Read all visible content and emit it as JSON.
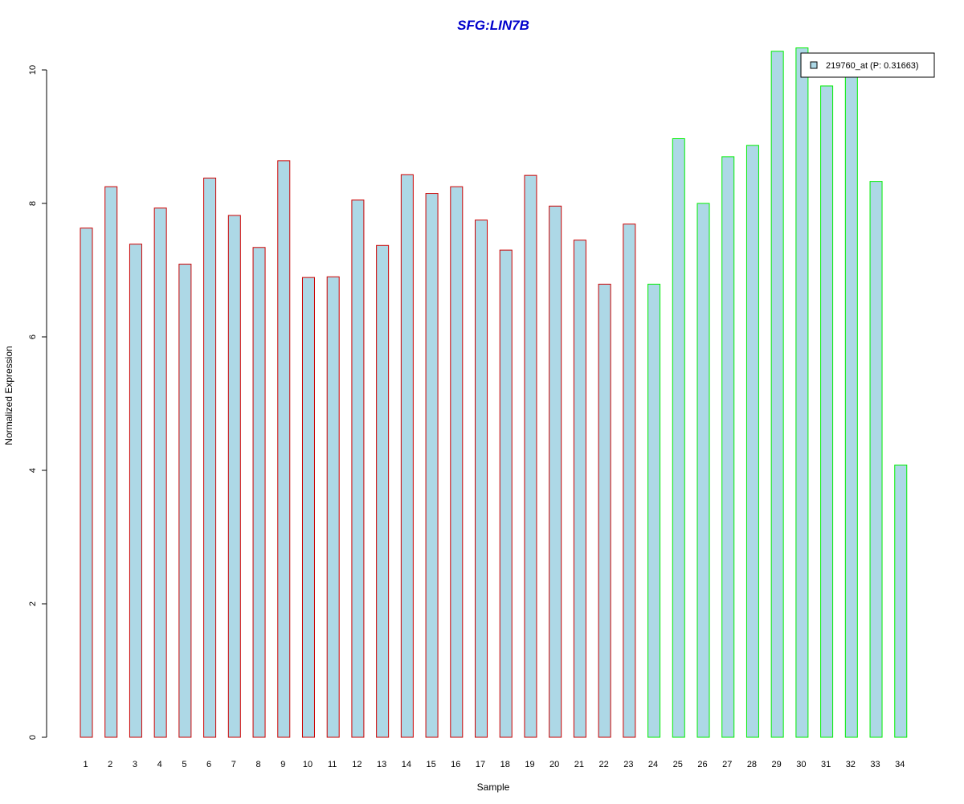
{
  "chart_data": {
    "type": "bar",
    "title": "SFG:LIN7B",
    "xlabel": "Sample",
    "ylabel": "Normalized Expression",
    "categories": [
      "1",
      "2",
      "3",
      "4",
      "5",
      "6",
      "7",
      "8",
      "9",
      "10",
      "11",
      "12",
      "13",
      "14",
      "15",
      "16",
      "17",
      "18",
      "19",
      "20",
      "21",
      "22",
      "23",
      "24",
      "25",
      "26",
      "27",
      "28",
      "29",
      "30",
      "31",
      "32",
      "33",
      "34"
    ],
    "values": [
      7.63,
      8.25,
      7.39,
      7.93,
      7.09,
      8.38,
      7.82,
      7.34,
      8.64,
      6.89,
      6.9,
      8.05,
      7.37,
      8.43,
      8.15,
      8.25,
      7.75,
      7.3,
      8.42,
      7.96,
      7.45,
      6.79,
      7.69,
      6.79,
      8.97,
      8.0,
      8.7,
      8.87,
      10.28,
      10.33,
      9.76,
      9.95,
      8.33,
      4.08
    ],
    "groups": [
      1,
      1,
      1,
      1,
      1,
      1,
      1,
      1,
      1,
      1,
      1,
      1,
      1,
      1,
      1,
      1,
      1,
      1,
      1,
      1,
      1,
      1,
      1,
      2,
      2,
      2,
      2,
      2,
      2,
      2,
      2,
      2,
      2,
      2
    ],
    "yticks": [
      0,
      2,
      4,
      6,
      8,
      10
    ],
    "ylim": [
      0,
      10.6
    ],
    "legend": {
      "position": "top-right",
      "entries": [
        "219760_at (P: 0.31663)"
      ]
    },
    "grid": false,
    "colors": {
      "title": "#0000CC",
      "bar_fill": "#ADD8E6",
      "group1_border": "#CC0000",
      "group2_border": "#00EE00",
      "axis": "#000000"
    }
  }
}
